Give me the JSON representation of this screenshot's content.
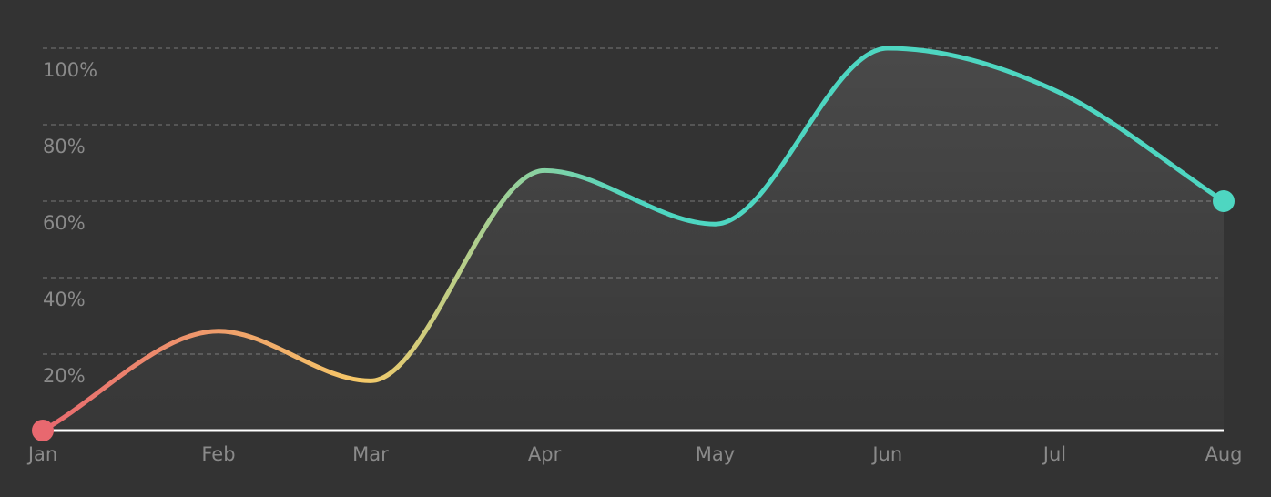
{
  "chart_data": {
    "type": "area",
    "title": "",
    "xlabel": "",
    "ylabel": "",
    "categories": [
      "Jan",
      "Feb",
      "Mar",
      "Apr",
      "May",
      "Jun",
      "Jul",
      "Aug"
    ],
    "x_positions": [
      0,
      1.04,
      1.94,
      2.97,
      3.98,
      5.0,
      5.99,
      6.99
    ],
    "series": [
      {
        "values": [
          0,
          26,
          13,
          68,
          54,
          100,
          89,
          60
        ]
      }
    ],
    "y_ticks": [
      {
        "value": 20,
        "label": "20%"
      },
      {
        "value": 40,
        "label": "40%"
      },
      {
        "value": 60,
        "label": "60%"
      },
      {
        "value": 80,
        "label": "80%"
      },
      {
        "value": 100,
        "label": "100%"
      }
    ],
    "ylim": [
      0,
      100
    ],
    "grid": true,
    "legend": "none",
    "colors": {
      "background": "#333333",
      "grid": "#6a6a6a",
      "baseline": "#ffffff",
      "tick_text": "#8a8a8a",
      "gradient_start": "#e8686f",
      "gradient_mid": "#f6c968",
      "gradient_end": "#4ed6c1",
      "start_marker": "#e8686f",
      "end_marker": "#4ed6c1"
    }
  }
}
